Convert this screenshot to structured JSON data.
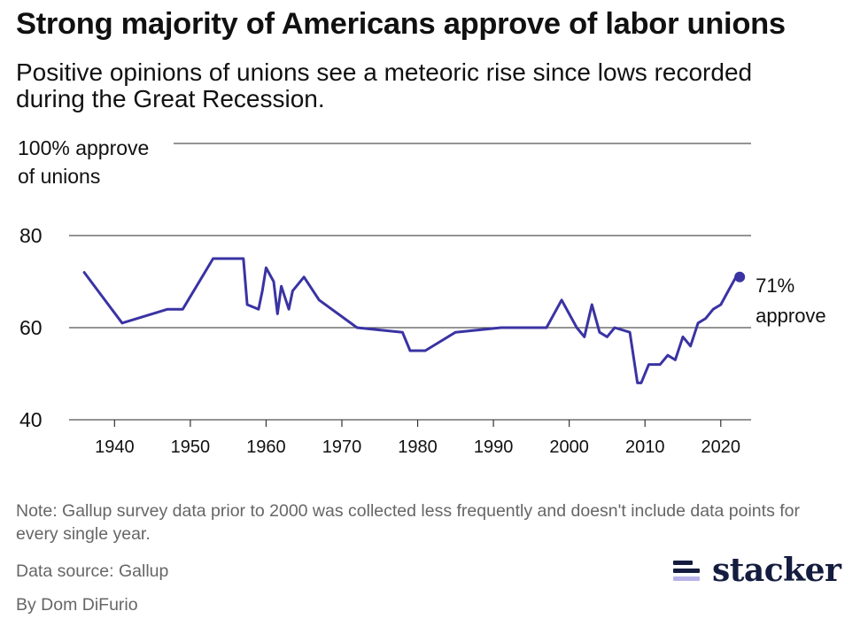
{
  "title": "Strong majority of Americans approve of labor unions",
  "subtitle": "Positive opinions of unions see a meteoric rise since lows recorded during the Great Recession.",
  "note": "Note: Gallup survey data prior to 2000 was collected less frequently and doesn't include data points for every single year.",
  "source": "Data source: Gallup",
  "byline": "By Dom DiFurio",
  "logo": {
    "text": "stacker"
  },
  "colors": {
    "series": "#3a33a3",
    "logo_dark": "#141d3f",
    "logo_light": "#b7b3e8"
  },
  "chart_data": {
    "type": "line",
    "title": "Strong majority of Americans approve of labor unions",
    "ylabel_line1": "100% approve",
    "ylabel_line2": "of unions",
    "ylim": [
      40,
      100
    ],
    "xlim": [
      1934,
      2024
    ],
    "yticks": [
      40,
      60,
      80,
      100
    ],
    "xticks": [
      1940,
      1950,
      1960,
      1970,
      1980,
      1990,
      2000,
      2010,
      2020
    ],
    "grid": true,
    "series": [
      {
        "name": "Approve of labor unions (%)",
        "x": [
          1936,
          1941,
          1947,
          1949,
          1953,
          1957,
          1957.5,
          1959,
          1959.5,
          1960,
          1961,
          1961.5,
          1962,
          1963,
          1963.5,
          1965,
          1967,
          1972,
          1978,
          1979,
          1981,
          1985,
          1991,
          1997,
          1999,
          2001,
          2002,
          2003,
          2004,
          2005,
          2006,
          2008,
          2009,
          2009.5,
          2010.5,
          2011,
          2012,
          2013,
          2014,
          2015,
          2016,
          2017,
          2018,
          2019,
          2020,
          2021,
          2022,
          2022.5
        ],
        "values": [
          72,
          61,
          64,
          64,
          75,
          75,
          65,
          64,
          68,
          73,
          70,
          63,
          69,
          64,
          68,
          71,
          66,
          60,
          59,
          55,
          55,
          59,
          60,
          60,
          66,
          60,
          58,
          65,
          59,
          58,
          60,
          59,
          48,
          48,
          52,
          52,
          52,
          54,
          53,
          58,
          56,
          61,
          62,
          64,
          65,
          68,
          71,
          71
        ]
      }
    ],
    "end_label_line1": "71%",
    "end_label_line2": "approve"
  }
}
